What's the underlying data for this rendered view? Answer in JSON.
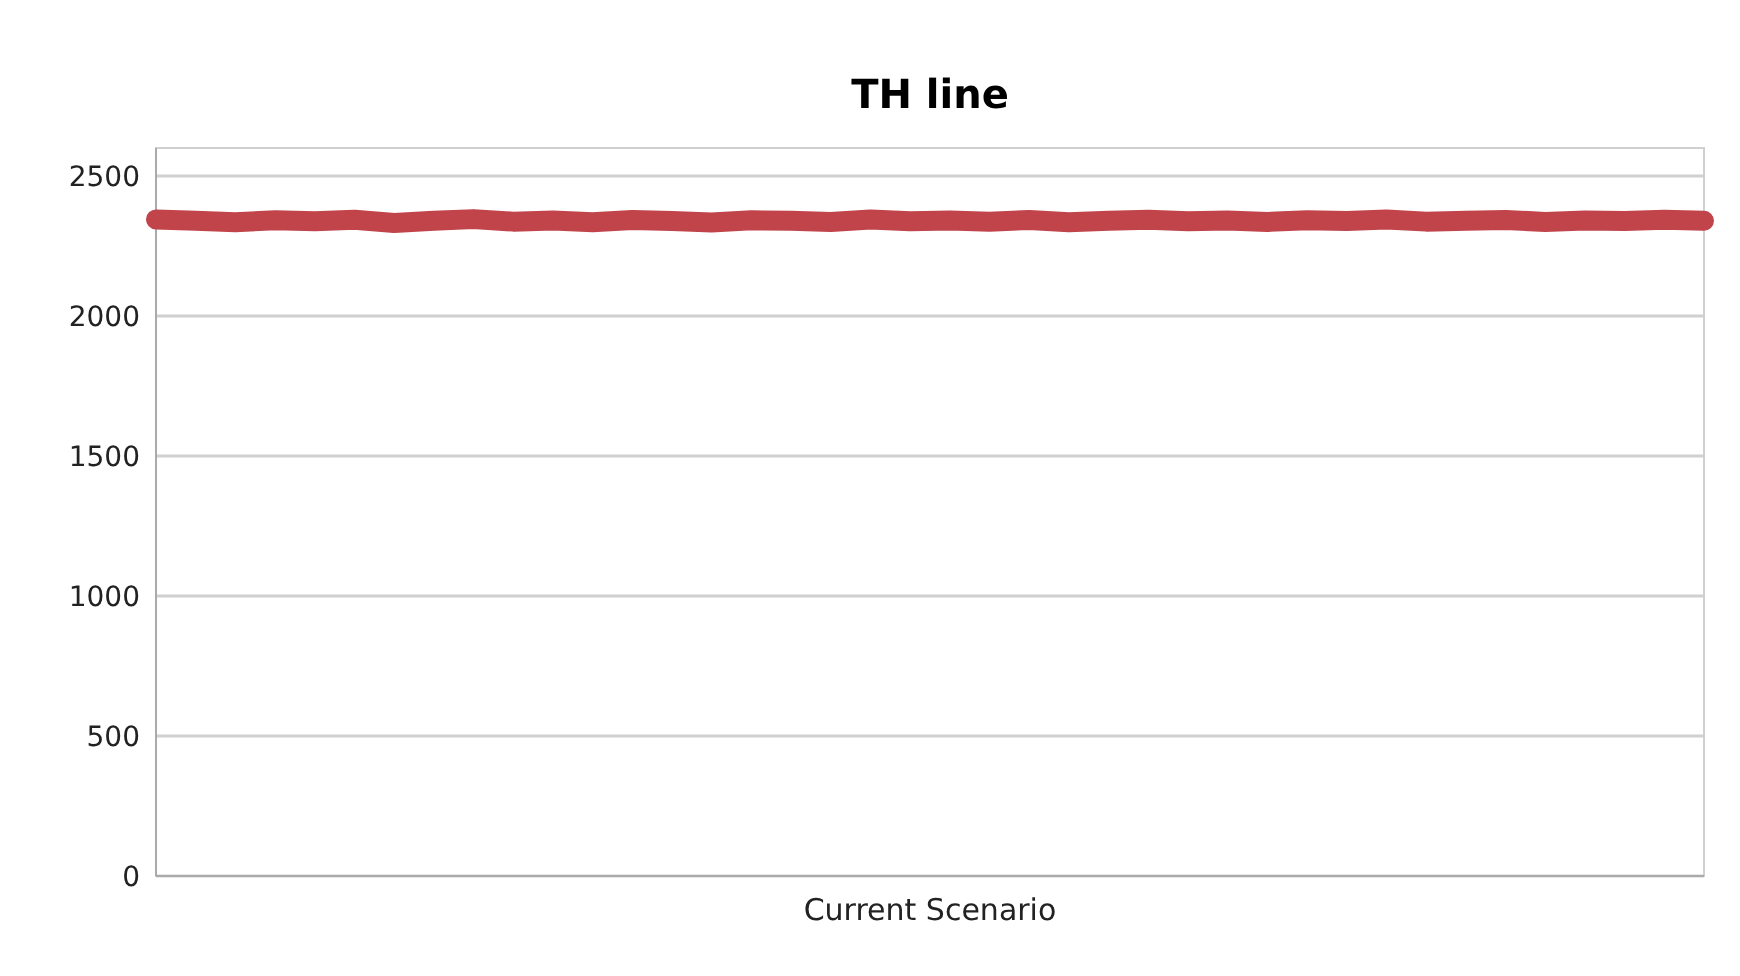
{
  "chart_data": {
    "type": "line",
    "title": "TH line",
    "xlabel": "Current Scenario",
    "categories": [
      null,
      null,
      null,
      null,
      null,
      null,
      null,
      null,
      null,
      null,
      null,
      null,
      null,
      null,
      null,
      null,
      null,
      null,
      null,
      null,
      null,
      null,
      null,
      null,
      null,
      null,
      null,
      null,
      null,
      null,
      null,
      null,
      null,
      null,
      null,
      null,
      null,
      null,
      null,
      null
    ],
    "series": [
      {
        "color": "#c0444a",
        "values": [
          2345,
          2340,
          2335,
          2342,
          2338,
          2344,
          2332,
          2340,
          2346,
          2337,
          2341,
          2335,
          2343,
          2339,
          2334,
          2342,
          2340,
          2336,
          2345,
          2338,
          2341,
          2337,
          2343,
          2335,
          2340,
          2344,
          2338,
          2341,
          2336,
          2342,
          2339,
          2345,
          2337,
          2340,
          2343,
          2336,
          2341,
          2339,
          2344,
          2340
        ]
      }
    ],
    "ylim": [
      0,
      2600
    ],
    "yticks": [
      0,
      500,
      1000,
      1500,
      2000,
      2500
    ],
    "grid": "y",
    "line_style": "solid"
  }
}
